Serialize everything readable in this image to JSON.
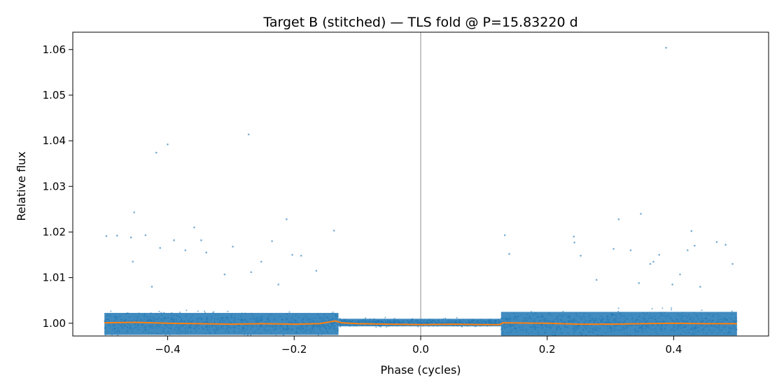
{
  "chart_data": {
    "type": "scatter",
    "title": "Target B (stitched) — TLS fold @ P=15.83220 d",
    "xlabel": "Phase (cycles)",
    "ylabel": "Relative flux",
    "xlim": [
      -0.55,
      0.55
    ],
    "ylim": [
      0.9972,
      1.0638
    ],
    "xticks": [
      -0.4,
      -0.2,
      0.0,
      0.2,
      0.4
    ],
    "xtick_labels": [
      "−0.4",
      "−0.2",
      "0.0",
      "0.2",
      "0.4"
    ],
    "yticks": [
      1.0,
      1.01,
      1.02,
      1.03,
      1.04,
      1.05,
      1.06
    ],
    "ytick_labels": [
      "1.00",
      "1.01",
      "1.02",
      "1.03",
      "1.04",
      "1.05",
      "1.06"
    ],
    "vertical_line_x": 0.0,
    "grid": false,
    "series": [
      {
        "kind": "scatter",
        "color": "#1f77b4",
        "dense_band": [
          {
            "x": [
              -0.5,
              -0.13
            ],
            "y": [
              0.9965,
              1.0032
            ]
          },
          {
            "x": [
              -0.13,
              0.127
            ],
            "y": [
              0.999,
              1.0013
            ]
          },
          {
            "x": [
              0.127,
              0.5
            ],
            "y": [
              0.9963,
              1.0035
            ]
          }
        ],
        "outliers": [
          [
            -0.497,
            1.0191
          ],
          [
            -0.48,
            1.0192
          ],
          [
            -0.458,
            1.0188
          ],
          [
            -0.453,
            1.0243
          ],
          [
            -0.435,
            1.0193
          ],
          [
            -0.418,
            1.0374
          ],
          [
            -0.4,
            1.0392
          ],
          [
            -0.412,
            1.0165
          ],
          [
            -0.39,
            1.0182
          ],
          [
            -0.372,
            1.016
          ],
          [
            -0.358,
            1.021
          ],
          [
            -0.347,
            1.0182
          ],
          [
            -0.339,
            1.0155
          ],
          [
            -0.297,
            1.0168
          ],
          [
            -0.272,
            1.0414
          ],
          [
            -0.252,
            1.0135
          ],
          [
            -0.235,
            1.018
          ],
          [
            -0.212,
            1.0228
          ],
          [
            -0.203,
            1.015
          ],
          [
            -0.189,
            1.0148
          ],
          [
            -0.165,
            1.0115
          ],
          [
            -0.137,
            1.0203
          ],
          [
            -0.455,
            1.0135
          ],
          [
            -0.31,
            1.0107
          ],
          [
            -0.268,
            1.0112
          ],
          [
            -0.225,
            1.0085
          ],
          [
            -0.425,
            1.008
          ],
          [
            0.133,
            1.0193
          ],
          [
            0.14,
            1.0152
          ],
          [
            0.242,
            1.019
          ],
          [
            0.243,
            1.0177
          ],
          [
            0.253,
            1.0148
          ],
          [
            0.305,
            1.0163
          ],
          [
            0.313,
            1.0228
          ],
          [
            0.332,
            1.016
          ],
          [
            0.348,
            1.024
          ],
          [
            0.363,
            1.013
          ],
          [
            0.368,
            1.0135
          ],
          [
            0.377,
            1.015
          ],
          [
            0.388,
            1.0604
          ],
          [
            0.41,
            1.0107
          ],
          [
            0.422,
            1.016
          ],
          [
            0.428,
            1.0202
          ],
          [
            0.433,
            1.017
          ],
          [
            0.442,
            1.008
          ],
          [
            0.468,
            1.0178
          ],
          [
            0.482,
            1.0172
          ],
          [
            0.493,
            1.013
          ],
          [
            0.278,
            1.0095
          ],
          [
            0.345,
            1.0088
          ],
          [
            0.398,
            1.0085
          ]
        ]
      },
      {
        "kind": "line",
        "color": "#ff7f0e",
        "x": [
          -0.5,
          -0.45,
          -0.4,
          -0.35,
          -0.3,
          -0.25,
          -0.2,
          -0.16,
          -0.135,
          -0.125,
          -0.1,
          -0.05,
          0.0,
          0.05,
          0.1,
          0.125,
          0.13,
          0.2,
          0.25,
          0.3,
          0.35,
          0.4,
          0.45,
          0.5
        ],
        "y": [
          1.0001,
          1.0002,
          1.0,
          0.9999,
          0.9998,
          0.9999,
          0.9998,
          0.9999,
          1.0005,
          1.0001,
          0.9999,
          0.9998,
          0.9997,
          0.9998,
          0.9997,
          0.9997,
          1.0001,
          1.0,
          0.9998,
          0.9998,
          0.9999,
          1.0,
          0.9999,
          0.9999
        ]
      }
    ]
  }
}
